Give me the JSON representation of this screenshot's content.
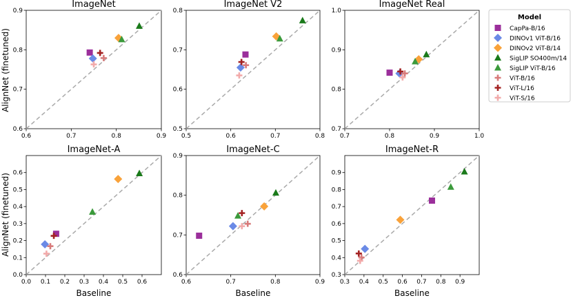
{
  "figure": {
    "xlabel": "Baseline",
    "ylabel": "AlignNet (finetuned)"
  },
  "legend": {
    "title": "Model",
    "entries": [
      {
        "label": "CapPa-B/16",
        "marker": "square",
        "color": "#9b2f9b"
      },
      {
        "label": "DINOv1 ViT-B/16",
        "marker": "diamond",
        "color": "#6a8ae6"
      },
      {
        "label": "DINOv2 ViT-B/14",
        "marker": "diamond",
        "color": "#f9a23a"
      },
      {
        "label": "SigLIP SO400m/14",
        "marker": "triangle",
        "color": "#1a7a1a"
      },
      {
        "label": "SigLIP ViT-B/16",
        "marker": "triangle",
        "color": "#3b9a3b"
      },
      {
        "label": "ViT-B/16",
        "marker": "plus",
        "color": "#d87a7a"
      },
      {
        "label": "ViT-L/16",
        "marker": "plus",
        "color": "#a32222"
      },
      {
        "label": "ViT-S/16",
        "marker": "plus",
        "color": "#f2aaaa"
      }
    ]
  },
  "chart_data": [
    {
      "type": "scatter",
      "title": "ImageNet",
      "xlabel": "",
      "ylabel": "AlignNet (finetuned)",
      "xlim": [
        0.6,
        0.9
      ],
      "ylim": [
        0.6,
        0.9
      ],
      "xticks": [
        "0.6",
        "0.7",
        "0.8",
        "0.9"
      ],
      "yticks": [
        "0.6",
        "0.7",
        "0.8",
        "0.9"
      ],
      "diagonal": true,
      "points": [
        {
          "model": "CapPa-B/16",
          "x": 0.741,
          "y": 0.793
        },
        {
          "model": "DINOv1 ViT-B/16",
          "x": 0.748,
          "y": 0.778
        },
        {
          "model": "DINOv2 ViT-B/14",
          "x": 0.805,
          "y": 0.83
        },
        {
          "model": "SigLIP SO400m/14",
          "x": 0.851,
          "y": 0.86
        },
        {
          "model": "SigLIP ViT-B/16",
          "x": 0.812,
          "y": 0.826
        },
        {
          "model": "ViT-B/16",
          "x": 0.772,
          "y": 0.779
        },
        {
          "model": "ViT-L/16",
          "x": 0.764,
          "y": 0.792
        },
        {
          "model": "ViT-S/16",
          "x": 0.75,
          "y": 0.763
        }
      ]
    },
    {
      "type": "scatter",
      "title": "ImageNet V2",
      "xlabel": "",
      "ylabel": "",
      "xlim": [
        0.5,
        0.8
      ],
      "ylim": [
        0.5,
        0.8
      ],
      "xticks": [
        "0.5",
        "0.6",
        "0.7",
        "0.8"
      ],
      "yticks": [
        "0.5",
        "0.6",
        "0.7",
        "0.8"
      ],
      "diagonal": true,
      "points": [
        {
          "model": "CapPa-B/16",
          "x": 0.633,
          "y": 0.688
        },
        {
          "model": "DINOv1 ViT-B/16",
          "x": 0.622,
          "y": 0.655
        },
        {
          "model": "DINOv2 ViT-B/14",
          "x": 0.702,
          "y": 0.734
        },
        {
          "model": "SigLIP SO400m/14",
          "x": 0.761,
          "y": 0.774
        },
        {
          "model": "SigLIP ViT-B/16",
          "x": 0.71,
          "y": 0.728
        },
        {
          "model": "ViT-B/16",
          "x": 0.634,
          "y": 0.661
        },
        {
          "model": "ViT-L/16",
          "x": 0.624,
          "y": 0.669
        },
        {
          "model": "ViT-S/16",
          "x": 0.619,
          "y": 0.635
        }
      ]
    },
    {
      "type": "scatter",
      "title": "ImageNet Real",
      "xlabel": "",
      "ylabel": "",
      "xlim": [
        0.7,
        1.0
      ],
      "ylim": [
        0.7,
        1.0
      ],
      "xticks": [
        "0.7",
        "0.8",
        "0.9",
        "1.0"
      ],
      "yticks": [
        "0.7",
        "0.8",
        "0.9",
        "1.0"
      ],
      "diagonal": true,
      "points": [
        {
          "model": "CapPa-B/16",
          "x": 0.8,
          "y": 0.842
        },
        {
          "model": "DINOv1 ViT-B/16",
          "x": 0.822,
          "y": 0.84
        },
        {
          "model": "DINOv2 ViT-B/14",
          "x": 0.865,
          "y": 0.876
        },
        {
          "model": "SigLIP SO400m/14",
          "x": 0.882,
          "y": 0.888
        },
        {
          "model": "SigLIP ViT-B/16",
          "x": 0.857,
          "y": 0.87
        },
        {
          "model": "ViT-B/16",
          "x": 0.834,
          "y": 0.84
        },
        {
          "model": "ViT-L/16",
          "x": 0.824,
          "y": 0.845
        },
        {
          "model": "ViT-S/16",
          "x": 0.829,
          "y": 0.83
        }
      ]
    },
    {
      "type": "scatter",
      "title": "ImageNet-A",
      "xlabel": "Baseline",
      "ylabel": "AlignNet (finetuned)",
      "xlim": [
        0.0,
        0.7
      ],
      "ylim": [
        0.0,
        0.7
      ],
      "xticks": [
        "0.0",
        "0.1",
        "0.2",
        "0.3",
        "0.4",
        "0.5",
        "0.6"
      ],
      "yticks": [
        "0.0",
        "0.1",
        "0.2",
        "0.3",
        "0.4",
        "0.5",
        "0.6"
      ],
      "diagonal": true,
      "points": [
        {
          "model": "CapPa-B/16",
          "x": 0.155,
          "y": 0.24
        },
        {
          "model": "DINOv1 ViT-B/16",
          "x": 0.097,
          "y": 0.178
        },
        {
          "model": "DINOv2 ViT-B/14",
          "x": 0.476,
          "y": 0.562
        },
        {
          "model": "SigLIP SO400m/14",
          "x": 0.586,
          "y": 0.595
        },
        {
          "model": "SigLIP ViT-B/16",
          "x": 0.343,
          "y": 0.368
        },
        {
          "model": "ViT-B/16",
          "x": 0.125,
          "y": 0.167
        },
        {
          "model": "ViT-L/16",
          "x": 0.143,
          "y": 0.228
        },
        {
          "model": "ViT-S/16",
          "x": 0.105,
          "y": 0.123
        }
      ]
    },
    {
      "type": "scatter",
      "title": "ImageNet-C",
      "xlabel": "Baseline",
      "ylabel": "",
      "xlim": [
        0.6,
        0.9
      ],
      "ylim": [
        0.6,
        0.9
      ],
      "xticks": [
        "0.6",
        "0.7",
        "0.8",
        "0.9"
      ],
      "yticks": [
        "0.6",
        "0.7",
        "0.8",
        "0.9"
      ],
      "diagonal": true,
      "points": [
        {
          "model": "CapPa-B/16",
          "x": 0.629,
          "y": 0.698
        },
        {
          "model": "DINOv1 ViT-B/16",
          "x": 0.705,
          "y": 0.722
        },
        {
          "model": "DINOv2 ViT-B/14",
          "x": 0.775,
          "y": 0.772
        },
        {
          "model": "SigLIP SO400m/14",
          "x": 0.801,
          "y": 0.806
        },
        {
          "model": "SigLIP ViT-B/16",
          "x": 0.716,
          "y": 0.748
        },
        {
          "model": "ViT-B/16",
          "x": 0.738,
          "y": 0.728
        },
        {
          "model": "ViT-L/16",
          "x": 0.725,
          "y": 0.755
        },
        {
          "model": "ViT-S/16",
          "x": 0.725,
          "y": 0.722
        }
      ]
    },
    {
      "type": "scatter",
      "title": "ImageNet-R",
      "xlabel": "Baseline",
      "ylabel": "",
      "xlim": [
        0.3,
        1.0
      ],
      "ylim": [
        0.3,
        1.0
      ],
      "xticks": [
        "0.3",
        "0.4",
        "0.5",
        "0.6",
        "0.7",
        "0.8",
        "0.9"
      ],
      "yticks": [
        "0.3",
        "0.4",
        "0.5",
        "0.6",
        "0.7",
        "0.8",
        "0.9"
      ],
      "diagonal": true,
      "points": [
        {
          "model": "CapPa-B/16",
          "x": 0.754,
          "y": 0.735
        },
        {
          "model": "DINOv1 ViT-B/16",
          "x": 0.405,
          "y": 0.451
        },
        {
          "model": "DINOv2 ViT-B/14",
          "x": 0.589,
          "y": 0.622
        },
        {
          "model": "SigLIP SO400m/14",
          "x": 0.923,
          "y": 0.905
        },
        {
          "model": "SigLIP ViT-B/16",
          "x": 0.852,
          "y": 0.815
        },
        {
          "model": "ViT-B/16",
          "x": 0.387,
          "y": 0.401
        },
        {
          "model": "ViT-L/16",
          "x": 0.373,
          "y": 0.424
        },
        {
          "model": "ViT-S/16",
          "x": 0.38,
          "y": 0.381
        }
      ]
    }
  ]
}
